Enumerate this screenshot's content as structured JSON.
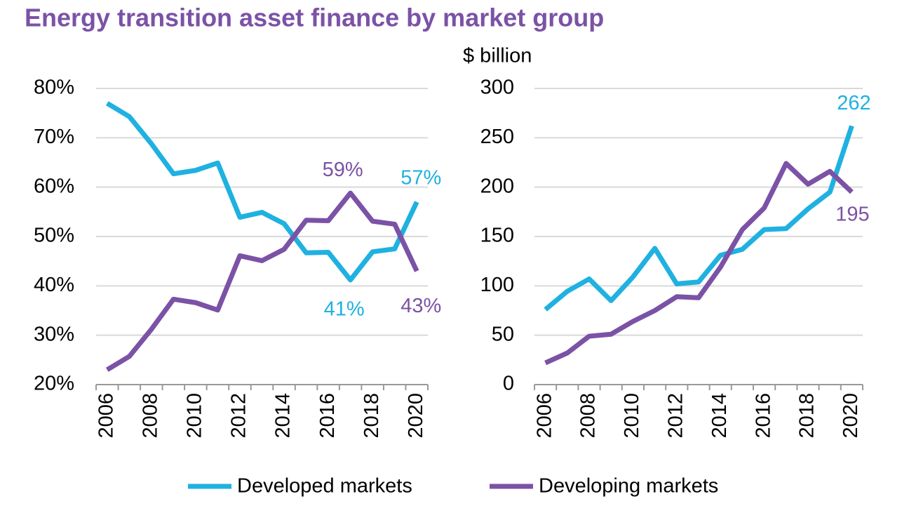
{
  "title": "Energy transition asset finance by market group",
  "chart_data": [
    {
      "type": "line",
      "categories": [
        "2006",
        null,
        "2008",
        null,
        "2010",
        null,
        "2012",
        null,
        "2014",
        null,
        "2016",
        null,
        "2018",
        null,
        "2020"
      ],
      "ylim": [
        20,
        80
      ],
      "yticks": [
        {
          "value": 20,
          "label": "20%"
        },
        {
          "value": 30,
          "label": "30%"
        },
        {
          "value": 40,
          "label": "40%"
        },
        {
          "value": 50,
          "label": "50%"
        },
        {
          "value": 60,
          "label": "60%"
        },
        {
          "value": 70,
          "label": "70%"
        },
        {
          "value": 80,
          "label": "80%"
        }
      ],
      "grid": true,
      "series": [
        {
          "name": "Developed markets",
          "color": "#1fb1e0",
          "values": [
            77,
            74.3,
            68.8,
            62.7,
            63.4,
            64.9,
            53.9,
            54.9,
            52.6,
            46.7,
            46.8,
            41.2,
            46.9,
            47.5,
            57
          ],
          "value_labels": [
            null,
            null,
            null,
            null,
            null,
            null,
            null,
            null,
            null,
            null,
            null,
            "41%",
            null,
            null,
            "57%"
          ]
        },
        {
          "name": "Developing markets",
          "color": "#7b52a6",
          "values": [
            23,
            25.7,
            31.2,
            37.3,
            36.6,
            35.1,
            46.1,
            45.1,
            47.4,
            53.3,
            53.2,
            58.8,
            53.1,
            52.5,
            43
          ],
          "value_labels": [
            null,
            null,
            null,
            null,
            null,
            null,
            null,
            null,
            null,
            null,
            null,
            "59%",
            null,
            null,
            "43%"
          ]
        }
      ]
    },
    {
      "type": "line",
      "y_label": "$ billion",
      "categories": [
        "2006",
        null,
        "2008",
        null,
        "2010",
        null,
        "2012",
        null,
        "2014",
        null,
        "2016",
        null,
        "2018",
        null,
        "2020"
      ],
      "ylim": [
        0,
        300
      ],
      "yticks": [
        0,
        50,
        100,
        150,
        200,
        250,
        300
      ],
      "grid": true,
      "series": [
        {
          "name": "Developed markets",
          "color": "#1fb1e0",
          "values": [
            76,
            94.5,
            107,
            85,
            109,
            138,
            102,
            104,
            131,
            137,
            157,
            158,
            178,
            195,
            262
          ]
        },
        {
          "name": "Developing markets",
          "color": "#7b52a6",
          "values": [
            22,
            32,
            49,
            51,
            64,
            75,
            89,
            88,
            119,
            157,
            179,
            224,
            203,
            216,
            195
          ]
        }
      ]
    }
  ]
}
